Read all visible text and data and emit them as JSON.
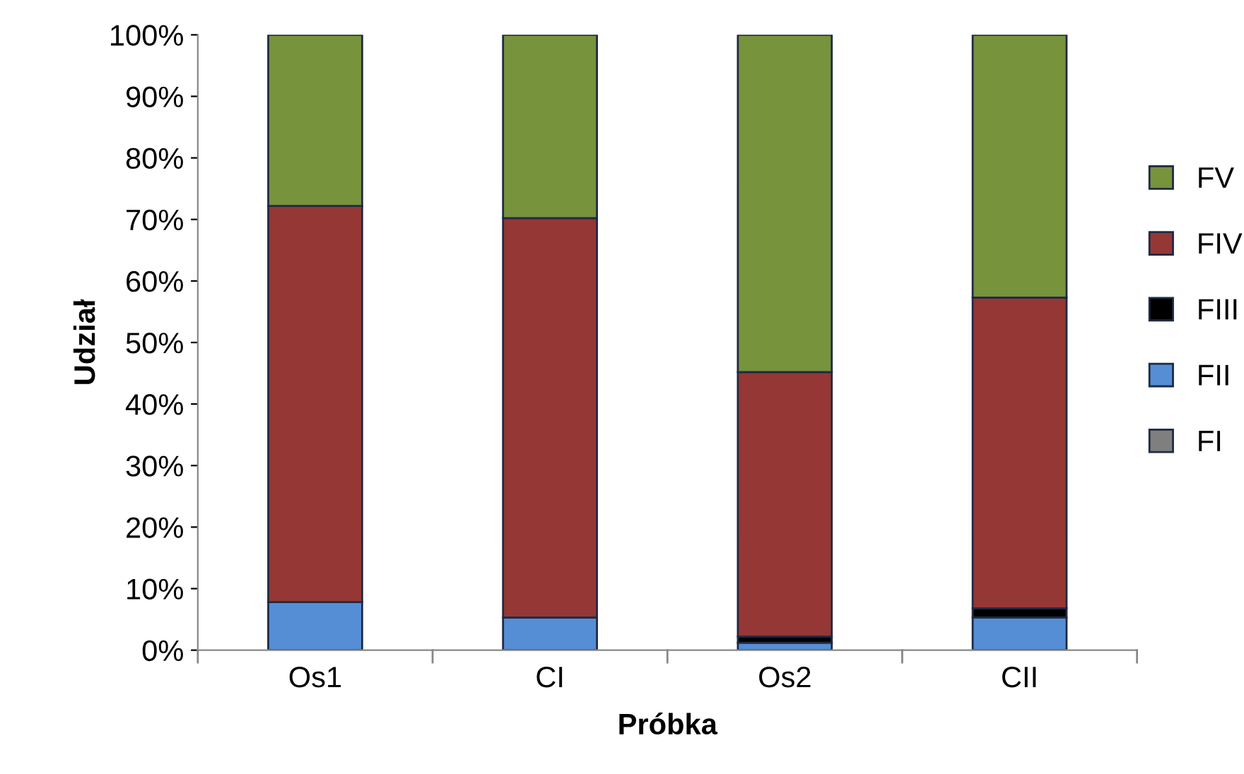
{
  "chart_data": {
    "type": "bar",
    "stacked": true,
    "xlabel": "Próbka",
    "ylabel": "Udział",
    "categories": [
      "Os1",
      "CI",
      "Os2",
      "CII"
    ],
    "series": [
      {
        "name": "FI",
        "color": "#7f7f7f",
        "values": [
          0,
          0,
          0,
          0
        ]
      },
      {
        "name": "FII",
        "color": "#558ed5",
        "values": [
          7.8,
          5.3,
          1.2,
          5.3
        ]
      },
      {
        "name": "FIII",
        "color": "#000000",
        "values": [
          0,
          0,
          1.0,
          1.5
        ]
      },
      {
        "name": "FIV",
        "color": "#953735",
        "values": [
          64.4,
          64.9,
          43.0,
          50.5
        ]
      },
      {
        "name": "FV",
        "color": "#77933c",
        "values": [
          27.8,
          29.8,
          54.8,
          42.7
        ]
      }
    ],
    "ylim": [
      0,
      100
    ],
    "yticks": [
      {
        "value": 0,
        "label": "0%"
      },
      {
        "value": 10,
        "label": "10%"
      },
      {
        "value": 20,
        "label": "20%"
      },
      {
        "value": 30,
        "label": "30%"
      },
      {
        "value": 40,
        "label": "40%"
      },
      {
        "value": 50,
        "label": "50%"
      },
      {
        "value": 60,
        "label": "60%"
      },
      {
        "value": 70,
        "label": "70%"
      },
      {
        "value": 80,
        "label": "80%"
      },
      {
        "value": 90,
        "label": "90%"
      },
      {
        "value": 100,
        "label": "100%"
      }
    ],
    "legend": "right",
    "grid": false
  }
}
